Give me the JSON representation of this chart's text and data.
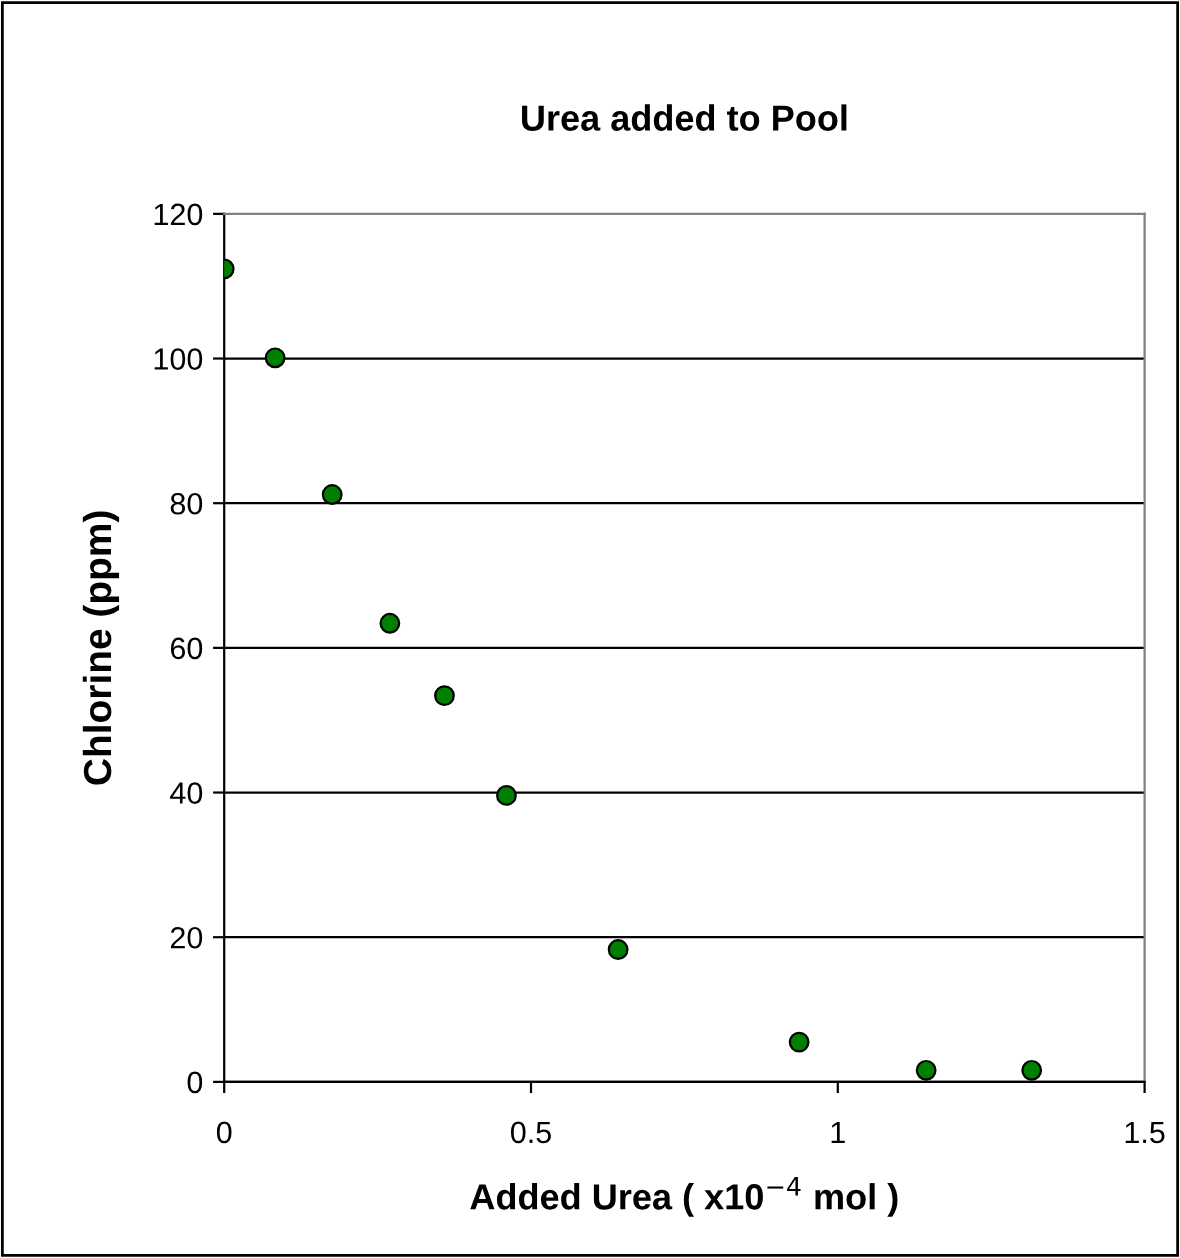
{
  "chart_data": {
    "type": "scatter",
    "title": "Urea added to Pool",
    "xlabel": "Added Urea ( x10$^{−4}$ mol )",
    "ylabel": "Chlorine (ppm)",
    "x": [
      0,
      0.083,
      0.176,
      0.27,
      0.359,
      0.46,
      0.642,
      0.937,
      1.144,
      1.316
    ],
    "series": [
      {
        "color": "#008000",
        "values": [
          112.4,
          100.1,
          81.2,
          63.4,
          53.4,
          39.6,
          18.3,
          5.5,
          1.6,
          1.6
        ]
      }
    ],
    "xlim": [
      0,
      1.5
    ],
    "xticks": [
      0,
      0.5,
      1,
      1.5
    ],
    "ylim": [
      0,
      120
    ],
    "yticks": [
      0,
      20,
      40,
      60,
      80,
      100,
      120
    ],
    "grid": "y",
    "marker": "circle",
    "legend": false
  }
}
